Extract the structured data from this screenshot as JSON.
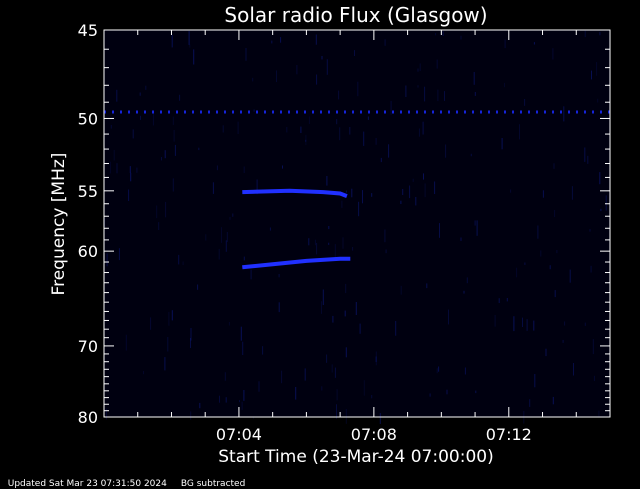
{
  "chart_data": {
    "type": "heatmap",
    "title": "Solar radio Flux (Glasgow)",
    "xlabel": "Start Time (23-Mar-24 07:00:00)",
    "ylabel": "Frequency [MHz]",
    "xlim_minutes": [
      0.0,
      15.0
    ],
    "ylim_reciprocal_axis_mhz": [
      45,
      80
    ],
    "x_ticks": [
      {
        "minute": 4,
        "label": "07:04"
      },
      {
        "minute": 8,
        "label": "07:08"
      },
      {
        "minute": 12,
        "label": "07:12"
      }
    ],
    "y_ticks": [
      {
        "mhz": 45,
        "label": "45"
      },
      {
        "mhz": 50,
        "label": "50"
      },
      {
        "mhz": 55,
        "label": "55"
      },
      {
        "mhz": 60,
        "label": "60"
      },
      {
        "mhz": 70,
        "label": "70"
      },
      {
        "mhz": 80,
        "label": "80"
      }
    ],
    "background": "#000010",
    "features": [
      {
        "kind": "band",
        "color": "#1a2aff",
        "points": [
          [
            0.0,
            49.6
          ],
          [
            15.0,
            49.6
          ]
        ],
        "style": "dashed"
      },
      {
        "kind": "band",
        "color": "#2030ff",
        "points": [
          [
            4.1,
            55.1
          ],
          [
            5.5,
            55.0
          ],
          [
            6.5,
            55.1
          ],
          [
            7.0,
            55.2
          ],
          [
            7.2,
            55.4
          ]
        ]
      },
      {
        "kind": "band",
        "color": "#2030ff",
        "points": [
          [
            4.1,
            61.5
          ],
          [
            5.0,
            61.2
          ],
          [
            6.0,
            60.9
          ],
          [
            7.0,
            60.7
          ],
          [
            7.3,
            60.7
          ]
        ]
      }
    ]
  },
  "footer": {
    "updated": "Updated Sat Mar 23 07:31:50 2024",
    "bg": "BG subtracted"
  }
}
